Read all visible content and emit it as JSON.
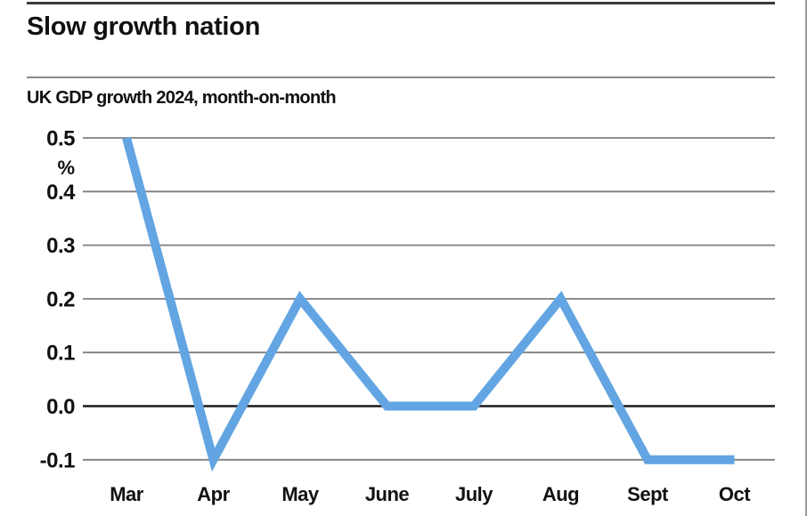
{
  "header": {
    "title": "Slow growth nation"
  },
  "chart_data": {
    "type": "line",
    "title": "Slow growth nation",
    "subtitle": "UK GDP growth 2024, month-on-month",
    "unit_label": "%",
    "categories": [
      "Mar",
      "Apr",
      "May",
      "June",
      "July",
      "Aug",
      "Sept",
      "Oct"
    ],
    "values": [
      0.5,
      -0.1,
      0.2,
      0.0,
      0.0,
      0.2,
      -0.1,
      -0.1
    ],
    "y_ticks": [
      0.5,
      0.4,
      0.3,
      0.2,
      0.1,
      0.0,
      -0.1
    ],
    "ylim": [
      -0.1,
      0.5
    ],
    "xlabel": "",
    "ylabel": "%",
    "grid": true,
    "legend": "none",
    "colors": {
      "line": "#62a5e2",
      "grid": "#7f7f7f",
      "zero_line": "#1a1a1a",
      "text": "#111111",
      "top_rule": "#3a3a3a",
      "divider": "#8a8a8a",
      "frame_border": "#9a9a9a"
    }
  }
}
